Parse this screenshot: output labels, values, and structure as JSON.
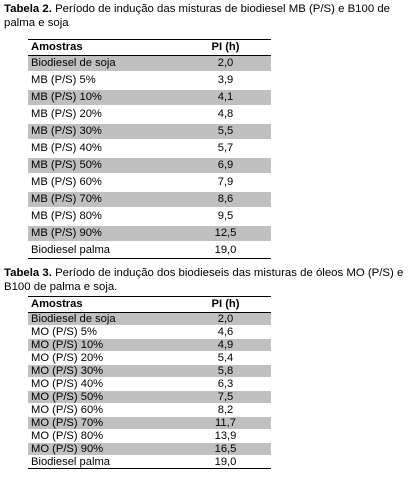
{
  "table1": {
    "caption_bold": "Tabela 2.",
    "caption_text": " Período de indução das misturas de biodiesel MB (P/S) e B100 de palma e soja",
    "headers": [
      "Amostras",
      "PI (h)"
    ],
    "rows": [
      {
        "sample": "Biodiesel de soja",
        "pi": "2,0"
      },
      {
        "sample": "MB (P/S) 5%",
        "pi": "3,9"
      },
      {
        "sample": "MB (P/S) 10%",
        "pi": "4,1"
      },
      {
        "sample": "MB (P/S) 20%",
        "pi": "4,8"
      },
      {
        "sample": "MB (P/S) 30%",
        "pi": "5,5"
      },
      {
        "sample": "MB (P/S) 40%",
        "pi": "5,7"
      },
      {
        "sample": "MB (P/S) 50%",
        "pi": "6,9"
      },
      {
        "sample": "MB (P/S) 60%",
        "pi": "7,9"
      },
      {
        "sample": "MB (P/S) 70%",
        "pi": "8,6"
      },
      {
        "sample": "MB (P/S) 80%",
        "pi": "9,5"
      },
      {
        "sample": "MB (P/S) 90%",
        "pi": "12,5"
      },
      {
        "sample": "Biodiesel palma",
        "pi": "19,0"
      }
    ]
  },
  "table2": {
    "caption_bold": "Tabela 3.",
    "caption_text": " Período de indução dos biodieseis das misturas de óleos MO (P/S) e B100 de palma e soja.",
    "headers": [
      "Amostras",
      "PI (h)"
    ],
    "rows": [
      {
        "sample": "Biodiesel de soja",
        "pi": "2,0"
      },
      {
        "sample": "MO (P/S) 5%",
        "pi": "4,6"
      },
      {
        "sample": "MO (P/S) 10%",
        "pi": "4,9"
      },
      {
        "sample": "MO (P/S) 20%",
        "pi": "5,4"
      },
      {
        "sample": "MO (P/S) 30%",
        "pi": "5,8"
      },
      {
        "sample": "MO (P/S) 40%",
        "pi": "6,3"
      },
      {
        "sample": "MO (P/S) 50%",
        "pi": "7,5"
      },
      {
        "sample": "MO (P/S) 60%",
        "pi": "8,2"
      },
      {
        "sample": "MO (P/S) 70%",
        "pi": "11,7"
      },
      {
        "sample": "MO (P/S) 80%",
        "pi": "13,9"
      },
      {
        "sample": "MO (P/S) 90%",
        "pi": "16,5"
      },
      {
        "sample": "Biodiesel palma",
        "pi": "19,0"
      }
    ]
  },
  "colors": {
    "shade": "#c0c0c0",
    "rule": "#000000"
  }
}
